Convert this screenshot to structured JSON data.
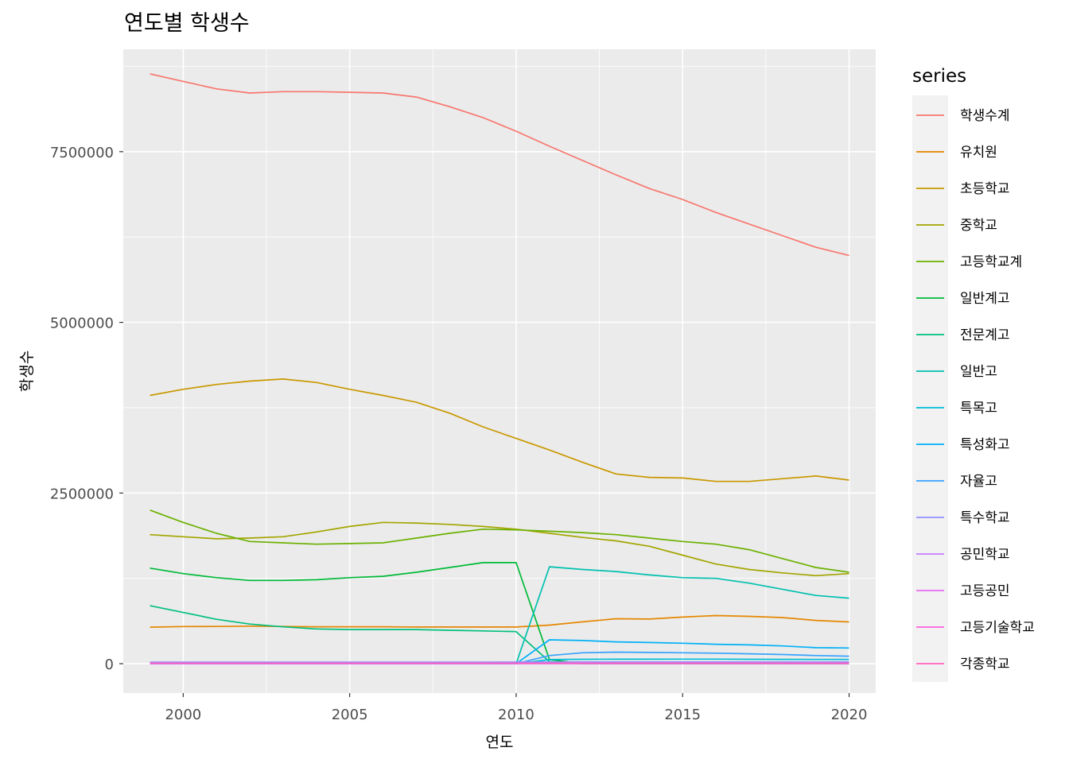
{
  "chart_data": {
    "type": "line",
    "title": "연도별 학생수",
    "xlabel": "연도",
    "ylabel": "학생수",
    "xlim": [
      1998.2,
      2020.8
    ],
    "ylim": [
      -430000,
      9000000
    ],
    "x_ticks": [
      2000,
      2005,
      2010,
      2015,
      2020
    ],
    "y_ticks": [
      0,
      2500000,
      5000000,
      7500000
    ],
    "y_tick_labels": [
      "0",
      "2500000",
      "5000000",
      "7500000"
    ],
    "grid": true,
    "legend": {
      "title": "series",
      "position": "right"
    },
    "x": [
      1999,
      2000,
      2001,
      2002,
      2003,
      2004,
      2005,
      2006,
      2007,
      2008,
      2009,
      2010,
      2011,
      2012,
      2013,
      2014,
      2015,
      2016,
      2017,
      2018,
      2019,
      2020
    ],
    "series": [
      {
        "name": "학생수계",
        "color": "#F8766D",
        "values": [
          8640000,
          8530000,
          8420000,
          8360000,
          8380000,
          8380000,
          8370000,
          8360000,
          8300000,
          8160000,
          8000000,
          7800000,
          7580000,
          7370000,
          7160000,
          6960000,
          6800000,
          6610000,
          6440000,
          6270000,
          6100000,
          5980000
        ]
      },
      {
        "name": "유치원",
        "color": "#E58700",
        "values": [
          535000,
          545000,
          546000,
          550000,
          546000,
          541000,
          541000,
          541000,
          537000,
          537000,
          537000,
          538000,
          565000,
          613000,
          659000,
          654000,
          683000,
          705000,
          694000,
          676000,
          634000,
          612000
        ]
      },
      {
        "name": "초등학교",
        "color": "#C99800",
        "values": [
          3930000,
          4020000,
          4090000,
          4140000,
          4170000,
          4120000,
          4020000,
          3930000,
          3830000,
          3670000,
          3470000,
          3300000,
          3130000,
          2950000,
          2780000,
          2730000,
          2720000,
          2670000,
          2670000,
          2710000,
          2750000,
          2690000
        ]
      },
      {
        "name": "중학교",
        "color": "#A3A500",
        "values": [
          1890000,
          1860000,
          1830000,
          1840000,
          1860000,
          1930000,
          2010000,
          2070000,
          2060000,
          2040000,
          2010000,
          1970000,
          1910000,
          1850000,
          1800000,
          1720000,
          1590000,
          1460000,
          1380000,
          1330000,
          1290000,
          1320000
        ]
      },
      {
        "name": "고등학교계",
        "color": "#6BB100",
        "values": [
          2250000,
          2070000,
          1910000,
          1790000,
          1770000,
          1750000,
          1760000,
          1770000,
          1840000,
          1910000,
          1970000,
          1960000,
          1940000,
          1920000,
          1890000,
          1840000,
          1790000,
          1750000,
          1670000,
          1540000,
          1410000,
          1340000
        ]
      },
      {
        "name": "일반계고",
        "color": "#00BA38",
        "values": [
          1400000,
          1320000,
          1260000,
          1220000,
          1220000,
          1230000,
          1260000,
          1280000,
          1340000,
          1410000,
          1480000,
          1480000,
          60000,
          0,
          0,
          0,
          0,
          0,
          0,
          0,
          0,
          0
        ]
      },
      {
        "name": "전문계고",
        "color": "#00BF7D",
        "values": [
          850000,
          750000,
          650000,
          580000,
          540000,
          510000,
          500000,
          500000,
          500000,
          490000,
          480000,
          470000,
          30000,
          0,
          0,
          0,
          0,
          0,
          0,
          0,
          0,
          0
        ]
      },
      {
        "name": "일반고",
        "color": "#00C0AF",
        "values": [
          0,
          0,
          0,
          0,
          0,
          0,
          0,
          0,
          0,
          0,
          0,
          0,
          1420000,
          1380000,
          1350000,
          1300000,
          1260000,
          1250000,
          1180000,
          1090000,
          1000000,
          960000
        ]
      },
      {
        "name": "특목고",
        "color": "#00BCD8",
        "values": [
          0,
          0,
          0,
          0,
          0,
          0,
          0,
          0,
          0,
          0,
          0,
          0,
          60000,
          65000,
          66000,
          66000,
          67000,
          67000,
          65000,
          64000,
          63000,
          62000
        ]
      },
      {
        "name": "특성화고",
        "color": "#00B0F6",
        "values": [
          0,
          0,
          0,
          0,
          0,
          0,
          0,
          0,
          0,
          0,
          0,
          0,
          350000,
          340000,
          320000,
          310000,
          300000,
          285000,
          275000,
          260000,
          235000,
          230000
        ]
      },
      {
        "name": "자율고",
        "color": "#35A2FF",
        "values": [
          0,
          0,
          0,
          0,
          0,
          0,
          0,
          0,
          0,
          0,
          0,
          0,
          120000,
          160000,
          170000,
          165000,
          160000,
          155000,
          145000,
          135000,
          120000,
          110000
        ]
      },
      {
        "name": "특수학교",
        "color": "#9590FF",
        "values": [
          23000,
          23000,
          23000,
          23000,
          23000,
          23000,
          23000,
          23000,
          23000,
          23000,
          23000,
          24000,
          24000,
          25000,
          25000,
          25000,
          26000,
          26000,
          26000,
          26000,
          26000,
          27000
        ]
      },
      {
        "name": "공민학교",
        "color": "#C77CFF",
        "values": [
          1000,
          1000,
          1000,
          1000,
          1000,
          1000,
          1000,
          1000,
          1000,
          1000,
          1000,
          1000,
          1000,
          1000,
          1000,
          1000,
          1000,
          1000,
          1000,
          1000,
          1000,
          1000
        ]
      },
      {
        "name": "고등공민",
        "color": "#E76BF3",
        "values": [
          3000,
          3000,
          3000,
          3000,
          3000,
          3000,
          3000,
          3000,
          3000,
          3000,
          3000,
          3000,
          3000,
          3000,
          3000,
          3000,
          3000,
          3000,
          3000,
          3000,
          3000,
          3000
        ]
      },
      {
        "name": "고등기술학교",
        "color": "#FA62DB",
        "values": [
          5000,
          5000,
          5000,
          5000,
          5000,
          5000,
          5000,
          5000,
          5000,
          5000,
          5000,
          5000,
          5000,
          5000,
          5000,
          5000,
          5000,
          5000,
          5000,
          5000,
          5000,
          5000
        ]
      },
      {
        "name": "각종학교",
        "color": "#FF62BC",
        "values": [
          9000,
          9000,
          9000,
          9000,
          9000,
          9000,
          9000,
          9000,
          9000,
          9000,
          9000,
          9000,
          9000,
          9000,
          9000,
          9000,
          9000,
          9000,
          9000,
          9000,
          9000,
          9000
        ]
      }
    ]
  }
}
